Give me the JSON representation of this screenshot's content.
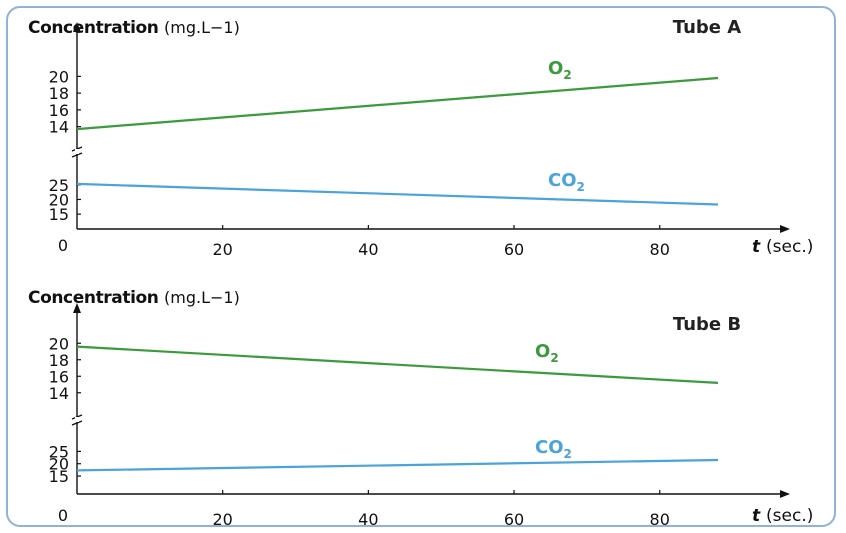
{
  "chart_data": [
    {
      "type": "line",
      "title": "Tube A",
      "ylabel": "Concentration",
      "yunit": "(mg.L−1)",
      "xlabel_italic": "t",
      "xunit": "(sec.)",
      "x_origin_label": "0",
      "x_ticks": [
        20,
        40,
        60,
        80
      ],
      "xlim": [
        0,
        88
      ],
      "broken_y_axis": true,
      "panels": [
        {
          "series_name": "O₂",
          "series_main": "O",
          "series_sub": "2",
          "color": "#3a9a3c",
          "y_ticks": [
            14,
            16,
            18,
            20
          ],
          "ylim": [
            13,
            21
          ],
          "x": [
            0,
            88
          ],
          "y": [
            13.7,
            19.8
          ]
        },
        {
          "series_name": "CO₂",
          "series_main": "CO",
          "series_sub": "2",
          "color": "#4aa3d9",
          "y_ticks": [
            15,
            20,
            25
          ],
          "ylim": [
            13,
            28
          ],
          "x": [
            0,
            88
          ],
          "y": [
            25.3,
            18.3
          ]
        }
      ]
    },
    {
      "type": "line",
      "title": "Tube B",
      "ylabel": "Concentration",
      "yunit": "(mg.L−1)",
      "xlabel_italic": "t",
      "xunit": "(sec.)",
      "x_origin_label": "0",
      "x_ticks": [
        20,
        40,
        60,
        80
      ],
      "xlim": [
        0,
        88
      ],
      "broken_y_axis": true,
      "panels": [
        {
          "series_name": "O₂",
          "series_main": "O",
          "series_sub": "2",
          "color": "#3a9a3c",
          "y_ticks": [
            14,
            16,
            18,
            20
          ],
          "ylim": [
            13,
            21
          ],
          "x": [
            0,
            88
          ],
          "y": [
            19.6,
            15.2
          ]
        },
        {
          "series_name": "CO₂",
          "series_main": "CO",
          "series_sub": "2",
          "color": "#4aa3d9",
          "y_ticks": [
            15,
            20,
            25
          ],
          "ylim": [
            13,
            28
          ],
          "x": [
            0,
            88
          ],
          "y": [
            17.3,
            21.5
          ]
        }
      ]
    }
  ]
}
